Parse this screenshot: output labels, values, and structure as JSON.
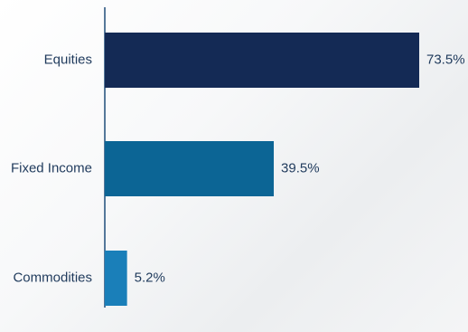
{
  "chart_data": {
    "type": "bar",
    "orientation": "horizontal",
    "categories": [
      "Equities",
      "Fixed Income",
      "Commodities"
    ],
    "values": [
      73.5,
      39.5,
      5.2
    ],
    "value_labels": [
      "73.5%",
      "39.5%",
      "5.2%"
    ],
    "colors": [
      "#142a55",
      "#0c6595",
      "#1a7fb9"
    ],
    "axis_color": "#1e4d7a",
    "xlim": [
      0,
      73.5
    ],
    "grid": false,
    "legend": "none"
  }
}
